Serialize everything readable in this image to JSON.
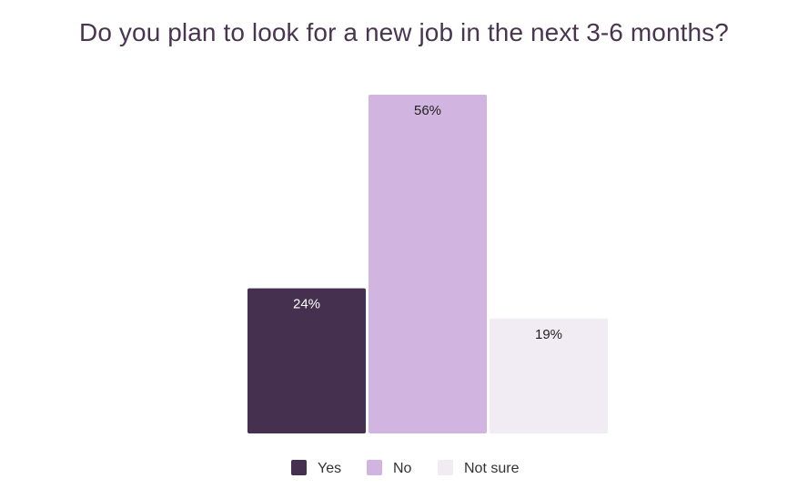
{
  "chart_data": {
    "type": "bar",
    "title": "Do you plan to look for a new job in the next 3-6 months?",
    "categories": [
      "Yes",
      "No",
      "Not sure"
    ],
    "values": [
      24,
      56,
      19
    ],
    "data_labels": [
      "24%",
      "56%",
      "19%"
    ],
    "colors": [
      "#45304f",
      "#d2b4e0",
      "#f1ebf4"
    ],
    "label_colors": [
      "#ffffff",
      "#222222",
      "#222222"
    ],
    "legend": [
      "Yes",
      "No",
      "Not sure"
    ],
    "legend_placement": "bottom-center",
    "grid": false,
    "axes_visible": false,
    "ylim": [
      0,
      56
    ]
  }
}
